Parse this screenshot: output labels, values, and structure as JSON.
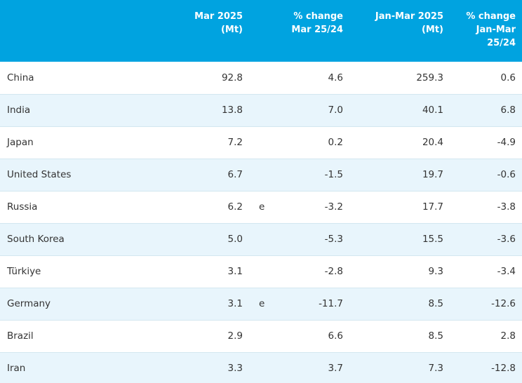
{
  "header": {
    "country": "",
    "mar": "Mar 2025\n(Mt)",
    "chg": "% change\nMar 25/24",
    "janmar": "Jan-Mar 2025\n(Mt)",
    "chg_janmar": "% change\nJan-Mar\n25/24"
  },
  "rows": [
    {
      "country": "China",
      "mar": "92.8",
      "flag": "",
      "chg": "4.6",
      "janmar": "259.3",
      "chg_janmar": "0.6"
    },
    {
      "country": "India",
      "mar": "13.8",
      "flag": "",
      "chg": "7.0",
      "janmar": "40.1",
      "chg_janmar": "6.8"
    },
    {
      "country": "Japan",
      "mar": "7.2",
      "flag": "",
      "chg": "0.2",
      "janmar": "20.4",
      "chg_janmar": "-4.9"
    },
    {
      "country": "United States",
      "mar": "6.7",
      "flag": "",
      "chg": "-1.5",
      "janmar": "19.7",
      "chg_janmar": "-0.6"
    },
    {
      "country": "Russia",
      "mar": "6.2",
      "flag": "e",
      "chg": "-3.2",
      "janmar": "17.7",
      "chg_janmar": "-3.8"
    },
    {
      "country": "South Korea",
      "mar": "5.0",
      "flag": "",
      "chg": "-5.3",
      "janmar": "15.5",
      "chg_janmar": "-3.6"
    },
    {
      "country": "Türkiye",
      "mar": "3.1",
      "flag": "",
      "chg": "-2.8",
      "janmar": "9.3",
      "chg_janmar": "-3.4"
    },
    {
      "country": "Germany",
      "mar": "3.1",
      "flag": "e",
      "chg": "-11.7",
      "janmar": "8.5",
      "chg_janmar": "-12.6"
    },
    {
      "country": "Brazil",
      "mar": "2.9",
      "flag": "",
      "chg": "6.6",
      "janmar": "8.5",
      "chg_janmar": "2.8"
    },
    {
      "country": "Iran",
      "mar": "3.3",
      "flag": "",
      "chg": "3.7",
      "janmar": "7.3",
      "chg_janmar": "-12.8"
    }
  ],
  "colors": {
    "header_bg": "#00a3e0",
    "header_text": "#ffffff",
    "row_alt_bg": "#e8f5fc",
    "text": "#333333"
  }
}
